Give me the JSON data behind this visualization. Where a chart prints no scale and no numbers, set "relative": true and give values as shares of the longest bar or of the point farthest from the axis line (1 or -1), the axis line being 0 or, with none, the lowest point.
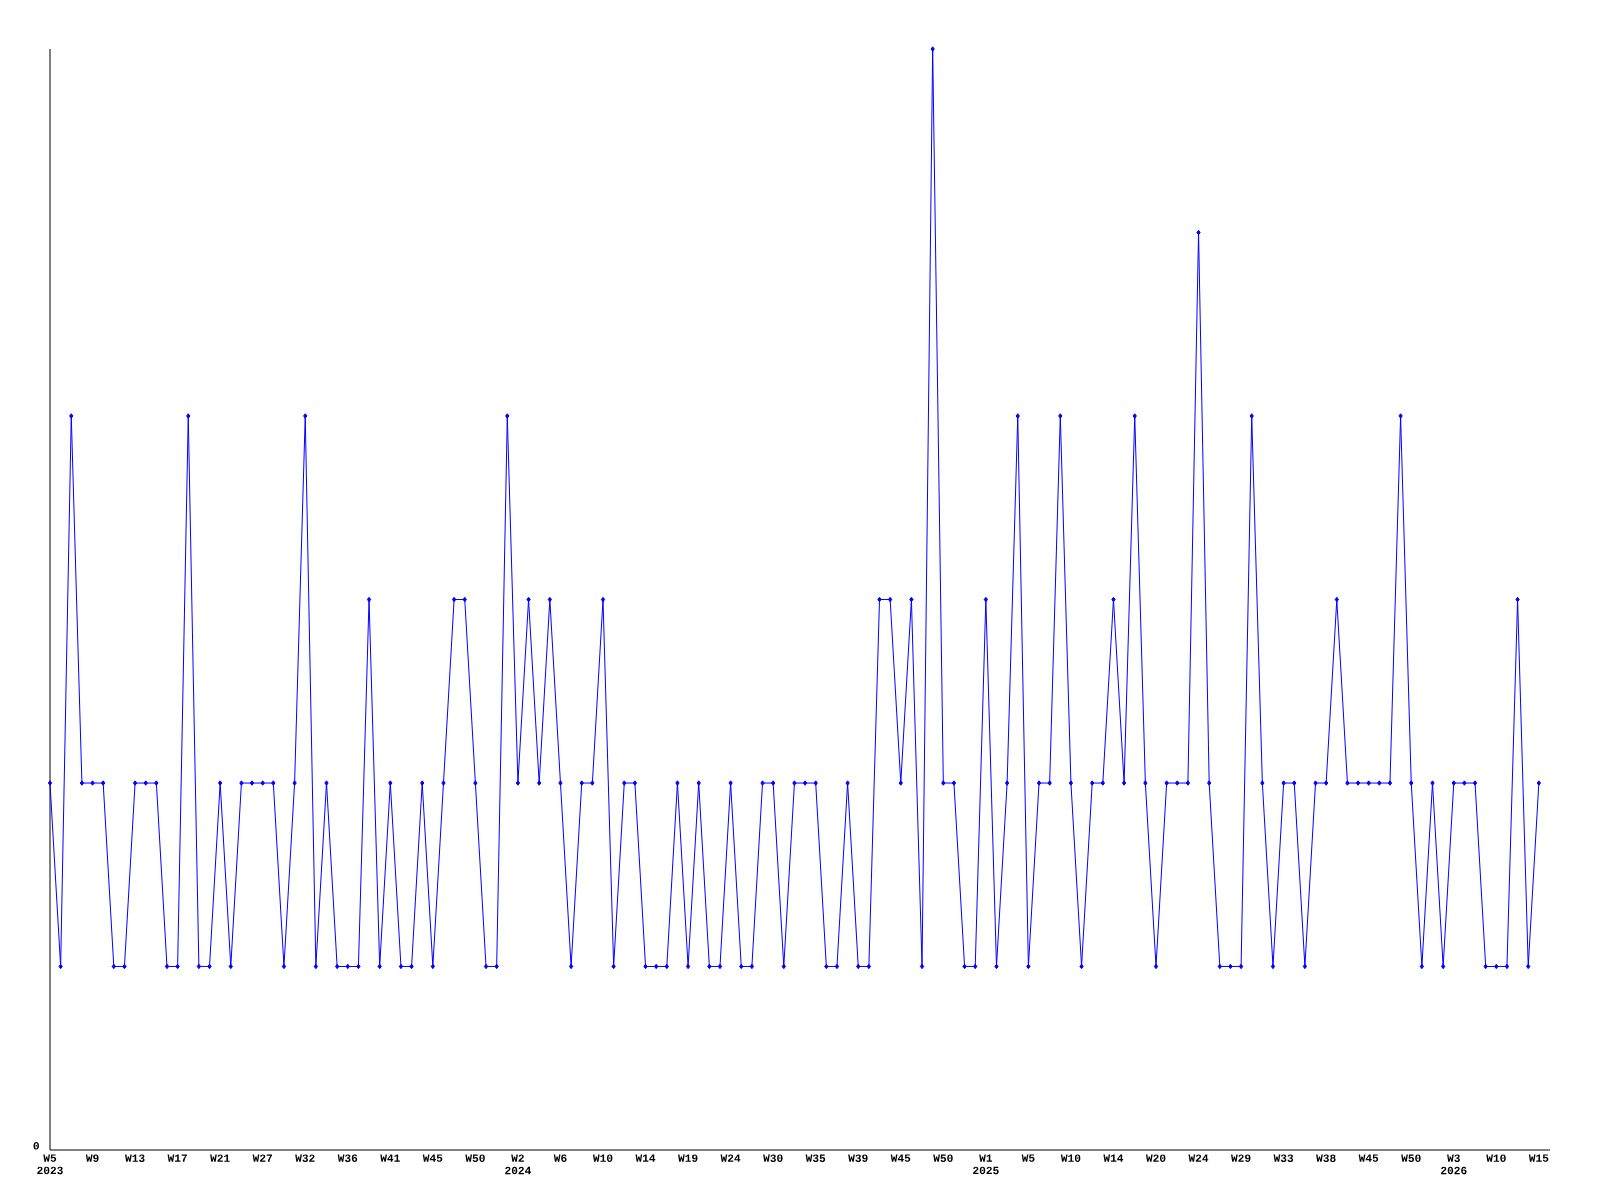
{
  "chart_data": {
    "type": "line",
    "relative": true,
    "color": "#0000ff",
    "marker": "diamond",
    "line_style": "solid",
    "annotations": [
      "0"
    ],
    "categories": [
      "W5 2023",
      null,
      null,
      null,
      "W9",
      null,
      null,
      null,
      "W13",
      null,
      null,
      null,
      "W17",
      null,
      null,
      null,
      "W21",
      null,
      null,
      null,
      "W27",
      null,
      null,
      null,
      "W32",
      null,
      null,
      null,
      "W36",
      null,
      null,
      null,
      "W41",
      null,
      null,
      null,
      "W45",
      null,
      null,
      null,
      "W50",
      null,
      null,
      null,
      "W2 2024",
      null,
      null,
      null,
      "W6",
      null,
      null,
      null,
      "W10",
      null,
      null,
      null,
      "W14",
      null,
      null,
      null,
      "W19",
      null,
      null,
      null,
      "W24",
      null,
      null,
      null,
      "W30",
      null,
      null,
      null,
      "W35",
      null,
      null,
      null,
      "W39",
      null,
      null,
      null,
      "W45",
      null,
      null,
      null,
      "W50",
      null,
      null,
      null,
      "W1 2025",
      null,
      null,
      null,
      "W5",
      null,
      null,
      null,
      "W10",
      null,
      null,
      null,
      "W14",
      null,
      null,
      null,
      "W20",
      null,
      null,
      null,
      "W24",
      null,
      null,
      null,
      "W29",
      null,
      null,
      null,
      "W33",
      null,
      null,
      null,
      "W38",
      null,
      null,
      null,
      "W45",
      null,
      null,
      null,
      "W50",
      null,
      null,
      null,
      "W3 2026",
      null,
      null,
      null,
      "W10",
      null,
      null,
      null,
      "W15"
    ],
    "values": [
      0.3333,
      0.1667,
      0.6667,
      0.3333,
      0.3333,
      0.3333,
      0.1667,
      0.1667,
      0.3333,
      0.3333,
      0.3333,
      0.1667,
      0.1667,
      0.6667,
      0.1667,
      0.1667,
      0.3333,
      0.1667,
      0.3333,
      0.3333,
      0.3333,
      0.3333,
      0.1667,
      0.3333,
      0.6667,
      0.1667,
      0.3333,
      0.1667,
      0.1667,
      0.1667,
      0.5,
      0.1667,
      0.3333,
      0.1667,
      0.1667,
      0.3333,
      0.1667,
      0.3333,
      0.5,
      0.5,
      0.3333,
      0.1667,
      0.1667,
      0.6667,
      0.3333,
      0.5,
      0.3333,
      0.5,
      0.3333,
      0.1667,
      0.3333,
      0.3333,
      0.5,
      0.1667,
      0.3333,
      0.3333,
      0.1667,
      0.1667,
      0.1667,
      0.3333,
      0.1667,
      0.3333,
      0.1667,
      0.1667,
      0.3333,
      0.1667,
      0.1667,
      0.3333,
      0.3333,
      0.1667,
      0.3333,
      0.3333,
      0.3333,
      0.1667,
      0.1667,
      0.3333,
      0.1667,
      0.1667,
      0.5,
      0.5,
      0.3333,
      0.5,
      0.1667,
      1,
      0.3333,
      0.3333,
      0.1667,
      0.1667,
      0.5,
      0.1667,
      0.3333,
      0.6667,
      0.1667,
      0.3333,
      0.3333,
      0.6667,
      0.3333,
      0.1667,
      0.3333,
      0.3333,
      0.5,
      0.3333,
      0.6667,
      0.3333,
      0.1667,
      0.3333,
      0.3333,
      0.3333,
      0.8333,
      0.3333,
      0.1667,
      0.1667,
      0.1667,
      0.6667,
      0.3333,
      0.1667,
      0.3333,
      0.3333,
      0.1667,
      0.3333,
      0.3333,
      0.5,
      0.3333,
      0.3333,
      0.3333,
      0.3333,
      0.3333,
      0.6667,
      0.3333,
      0.1667,
      0.3333,
      0.1667,
      0.3333,
      0.3333,
      0.3333,
      0.1667,
      0.1667,
      0.1667,
      0.5,
      0.1667,
      0.3333
    ]
  }
}
